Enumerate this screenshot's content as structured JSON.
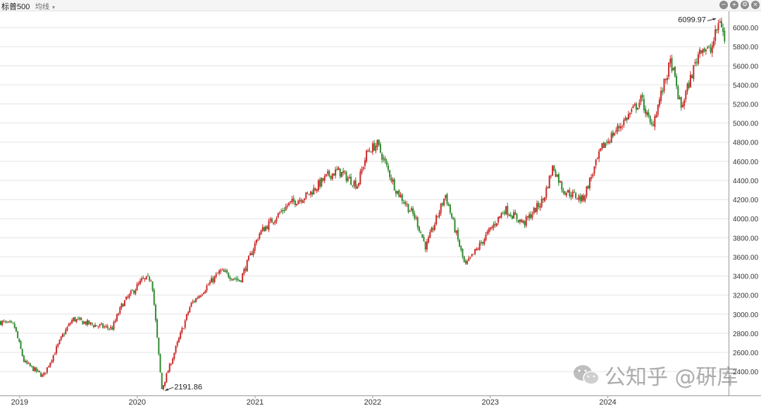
{
  "header": {
    "title": "标普500",
    "ma_label": "均线",
    "icons": [
      "minus-circle-icon",
      "plus-circle-icon",
      "gear-icon",
      "close-icon"
    ]
  },
  "watermark": {
    "text": "公知乎 @硏库"
  },
  "colors": {
    "up": "#cc2a2a",
    "down": "#2f8a2f",
    "grid": "#e4e4e4",
    "axis": "#9a9a9a"
  },
  "chart_data": {
    "type": "candlestick",
    "x": [
      "2018-11",
      "2018-12",
      "2019-01",
      "2019-03",
      "2019-05",
      "2019-06",
      "2019-08",
      "2019-10",
      "2019-11",
      "2020-01",
      "2020-02",
      "2020-03",
      "2020-03",
      "2020-06",
      "2020-09",
      "2020-11",
      "2021-01",
      "2021-04",
      "2021-06",
      "2021-08",
      "2021-09",
      "2021-11",
      "2021-12",
      "2022-01",
      "2022-03",
      "2022-05",
      "2022-06",
      "2022-08",
      "2022-10",
      "2022-12",
      "2023-02",
      "2023-04",
      "2023-06",
      "2023-07",
      "2023-08",
      "2023-10",
      "2023-12",
      "2024-02",
      "2024-04",
      "2024-05",
      "2024-07",
      "2024-08",
      "2024-10",
      "2024-11",
      "2024-12",
      "2025-01"
    ],
    "y": [
      2920,
      2880,
      2500,
      2350,
      2780,
      2950,
      2890,
      2850,
      3100,
      3350,
      3380,
      2300,
      2191.86,
      3100,
      3450,
      3350,
      3850,
      4150,
      4250,
      4450,
      4500,
      4350,
      4700,
      4780,
      4300,
      4000,
      3700,
      4250,
      3500,
      3800,
      4100,
      3950,
      4200,
      4550,
      4300,
      4200,
      4750,
      5000,
      5250,
      4950,
      5650,
      5150,
      5800,
      5750,
      6099.97,
      5850
    ],
    "y_ticks": [
      "6000.00",
      "5800.00",
      "5600.00",
      "5400.00",
      "5200.00",
      "5000.00",
      "4800.00",
      "4600.00",
      "4400.00",
      "4200.00",
      "4000.00",
      "3800.00",
      "3600.00",
      "3400.00",
      "3200.00",
      "3000.00",
      "2800.00",
      "2600.00",
      "2400.00"
    ],
    "x_ticks": [
      "2019",
      "2020",
      "2021",
      "2022",
      "2023",
      "2024"
    ],
    "ylim": [
      2150,
      6170
    ],
    "annotations": [
      {
        "text": "2191.86",
        "value": 2191.86
      },
      {
        "text": "6099.97",
        "value": 6099.97
      }
    ],
    "grid": true,
    "axis_position": "right"
  }
}
